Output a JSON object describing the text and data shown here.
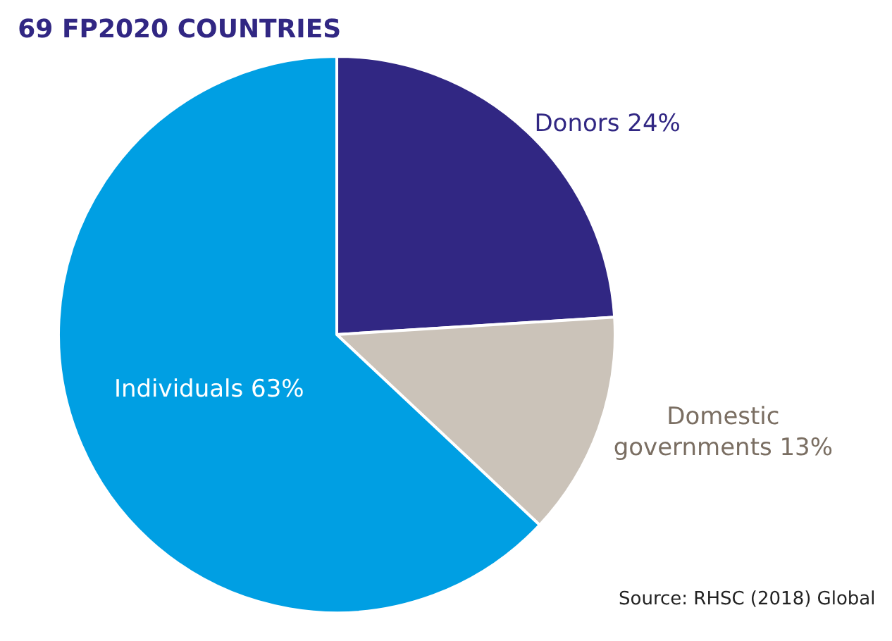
{
  "chart_data": {
    "type": "pie",
    "title": "69 FP2020 COUNTRIES",
    "categories": [
      "Donors",
      "Domestic governments",
      "Individuals"
    ],
    "values": [
      24,
      13,
      63
    ],
    "value_labels": [
      "24%",
      "13%",
      "63%"
    ],
    "colors": [
      "#312783",
      "#cbc3b9",
      "#009fe3"
    ],
    "legend": false,
    "annotations": [
      "Source: RHSC (2018) Global"
    ]
  }
}
